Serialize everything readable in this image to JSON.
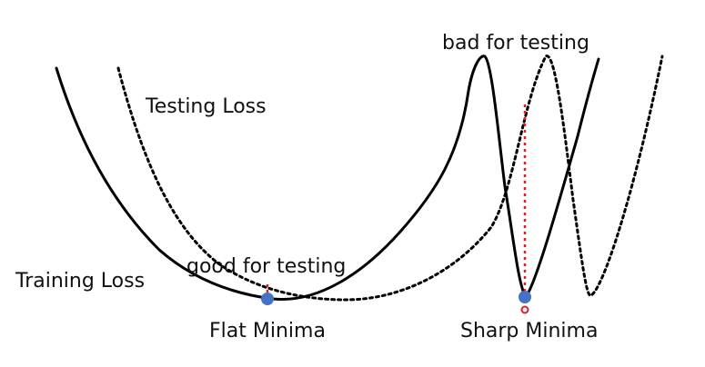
{
  "labels": {
    "training_loss": "Training Loss",
    "testing_loss": "Testing Loss",
    "good_for_testing": "good for testing",
    "bad_for_testing": "bad for testing",
    "flat_minima": "Flat Minima",
    "sharp_minima": "Sharp Minima"
  },
  "colors": {
    "training_curve": "#000000",
    "testing_curve": "#000000",
    "minima_point": "#4472c4",
    "gap_line": "#e02020"
  }
}
